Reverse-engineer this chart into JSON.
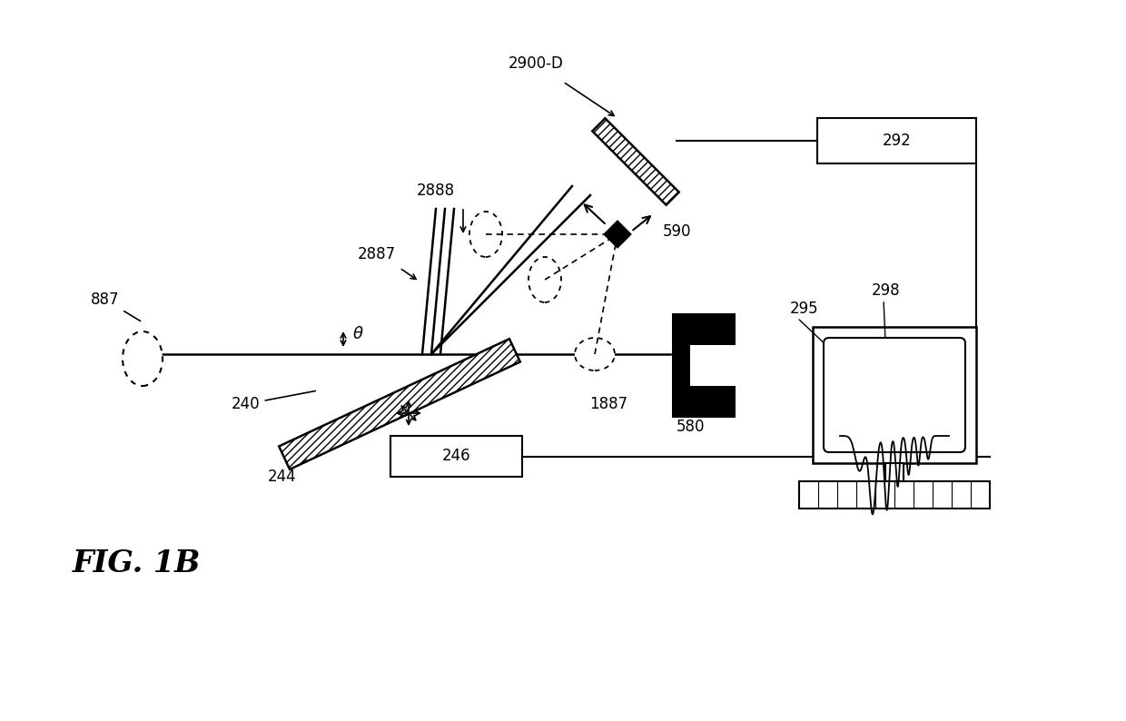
{
  "bg_color": "#ffffff",
  "labels": {
    "fig_title": "FIG. 1B",
    "detector_2900D": "2900-D",
    "beam_2888": "2888",
    "beam_2887": "2887",
    "optic_590": "590",
    "source_887": "887",
    "mirror_240": "240",
    "base_244": "244",
    "stage_246": "246",
    "slit_1887": "1887",
    "bracket_580": "580",
    "computer_295": "295",
    "monitor_298": "298",
    "box_292": "292"
  },
  "colors": {
    "black": "#000000",
    "white": "#ffffff"
  }
}
